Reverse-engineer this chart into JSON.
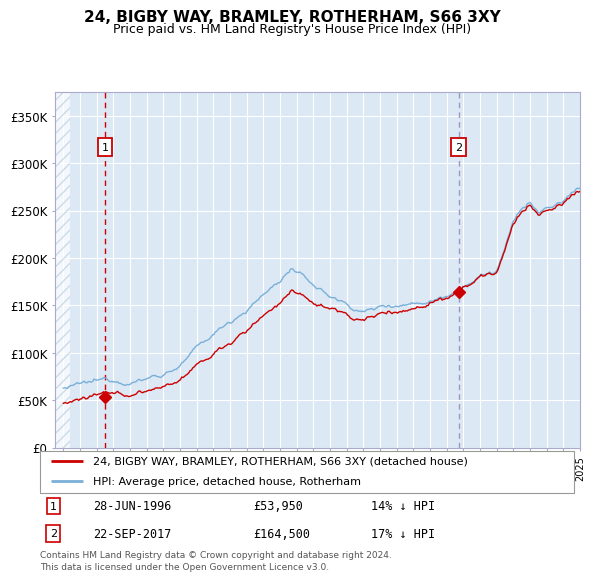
{
  "title": "24, BIGBY WAY, BRAMLEY, ROTHERHAM, S66 3XY",
  "subtitle": "Price paid vs. HM Land Registry's House Price Index (HPI)",
  "legend_line1": "24, BIGBY WAY, BRAMLEY, ROTHERHAM, S66 3XY (detached house)",
  "legend_line2": "HPI: Average price, detached house, Rotherham",
  "annotation1_date": "28-JUN-1996",
  "annotation1_price": "£53,950",
  "annotation1_hpi": "14% ↓ HPI",
  "annotation2_date": "22-SEP-2017",
  "annotation2_price": "£164,500",
  "annotation2_hpi": "17% ↓ HPI",
  "footer": "Contains HM Land Registry data © Crown copyright and database right 2024.\nThis data is licensed under the Open Government Licence v3.0.",
  "ylim": [
    0,
    375000
  ],
  "yticks": [
    0,
    50000,
    100000,
    150000,
    200000,
    250000,
    300000,
    350000
  ],
  "ytick_labels": [
    "£0",
    "£50K",
    "£100K",
    "£150K",
    "£200K",
    "£250K",
    "£300K",
    "£350K"
  ],
  "xstart_year": 1994,
  "xend_year": 2025,
  "sale1_year": 1996.5,
  "sale1_price": 53950,
  "sale2_year": 2017.72,
  "sale2_price": 164500,
  "bg_color": "#dce9f5",
  "hatch_color": "#b8cfe0",
  "grid_color": "#ffffff",
  "hpi_color": "#7ab0d8",
  "property_color": "#cc0000",
  "vline1_color": "#cc0000",
  "vline2_color": "#9999bb"
}
